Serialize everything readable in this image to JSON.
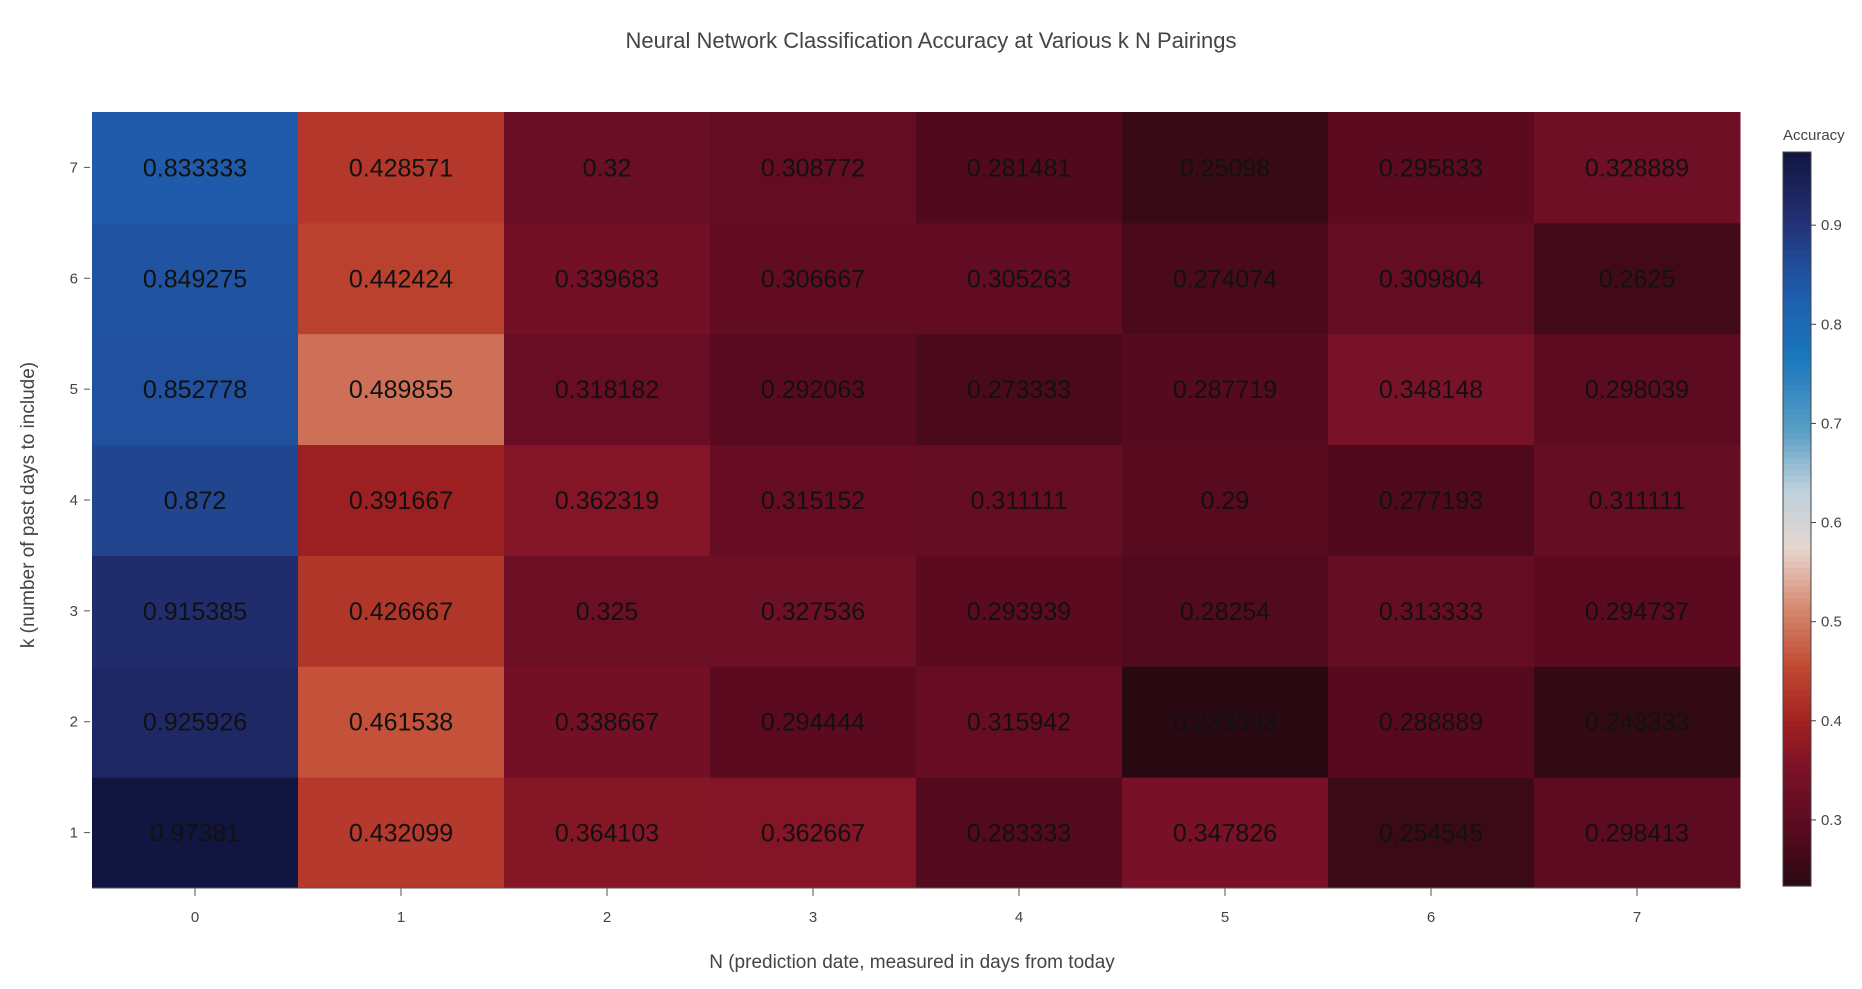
{
  "chart_data": {
    "type": "heatmap",
    "title": "Neural Network Classification Accuracy at Various k N Pairings",
    "xlabel": "N (prediction date, measured in days from today",
    "ylabel": "k (number of past days to include)",
    "x": [
      0,
      1,
      2,
      3,
      4,
      5,
      6,
      7
    ],
    "y": [
      1,
      2,
      3,
      4,
      5,
      6,
      7
    ],
    "x_tick_labels": [
      "0",
      "1",
      "2",
      "3",
      "4",
      "5",
      "6",
      "7"
    ],
    "y_tick_labels": [
      "1",
      "2",
      "3",
      "4",
      "5",
      "6",
      "7"
    ],
    "z": [
      [
        "0.97381",
        "0.432099",
        "0.364103",
        "0.362667",
        "0.283333",
        "0.347826",
        "0.254545",
        "0.298413"
      ],
      [
        "0.925926",
        "0.461538",
        "0.338667",
        "0.294444",
        "0.315942",
        "0.233333",
        "0.288889",
        "0.243333"
      ],
      [
        "0.915385",
        "0.426667",
        "0.325",
        "0.327536",
        "0.293939",
        "0.28254",
        "0.313333",
        "0.294737"
      ],
      [
        "0.872",
        "0.391667",
        "0.362319",
        "0.315152",
        "0.311111",
        "0.29",
        "0.277193",
        "0.311111"
      ],
      [
        "0.852778",
        "0.489855",
        "0.318182",
        "0.292063",
        "0.273333",
        "0.287719",
        "0.348148",
        "0.298039"
      ],
      [
        "0.849275",
        "0.442424",
        "0.339683",
        "0.306667",
        "0.305263",
        "0.274074",
        "0.309804",
        "0.2625"
      ],
      [
        "0.833333",
        "0.428571",
        "0.32",
        "0.308772",
        "0.281481",
        "0.25098",
        "0.295833",
        "0.328889"
      ]
    ],
    "zlim": [
      0.233333,
      0.97381
    ],
    "colorbar": {
      "title": "Accuracy",
      "tick_labels": [
        "0.3",
        "0.4",
        "0.5",
        "0.6",
        "0.7",
        "0.8",
        "0.9"
      ],
      "tick_values": [
        0.3,
        0.4,
        0.5,
        0.6,
        0.7,
        0.8,
        0.9
      ],
      "colorscale": [
        [
          0.0,
          "#2a0a12"
        ],
        [
          0.08,
          "#5a0a20"
        ],
        [
          0.16,
          "#7a1228"
        ],
        [
          0.22,
          "#a02020"
        ],
        [
          0.3,
          "#c24a33"
        ],
        [
          0.38,
          "#d68a72"
        ],
        [
          0.46,
          "#e6d6ce"
        ],
        [
          0.54,
          "#bcd0dc"
        ],
        [
          0.62,
          "#5a9ec4"
        ],
        [
          0.72,
          "#1a78bc"
        ],
        [
          0.82,
          "#1f58a8"
        ],
        [
          0.91,
          "#232f72"
        ],
        [
          1.0,
          "#111640"
        ]
      ]
    },
    "grid": false,
    "legend": "colorbar right"
  }
}
